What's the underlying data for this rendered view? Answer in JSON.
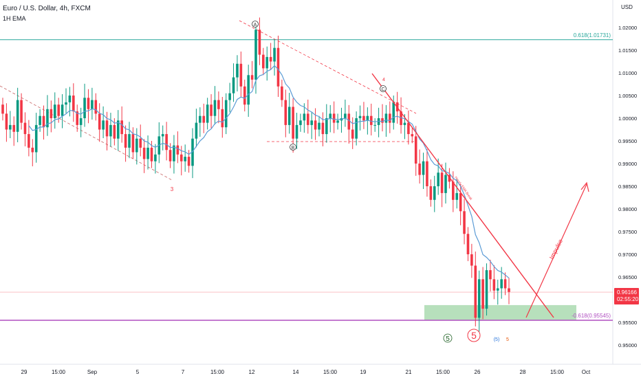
{
  "header": {
    "symbol_title": "Euro / U.S. Dollar, 4h, FXCM",
    "indicator": "1H EMA"
  },
  "price_axis": {
    "currency": "USD",
    "ticks": [
      "1.02000",
      "1.01500",
      "1.01000",
      "1.00500",
      "1.00000",
      "0.99500",
      "0.99000",
      "0.98500",
      "0.98000",
      "0.97500",
      "0.97000",
      "0.96500",
      "0.96000",
      "0.95500",
      "0.95000"
    ],
    "current_price": "0.96166",
    "countdown": "02:55:20"
  },
  "time_axis": {
    "ticks": [
      "29",
      "15:00",
      "Sep",
      "5",
      "7",
      "15:00",
      "12",
      "14",
      "15:00",
      "19",
      "21",
      "15:00",
      "26",
      "28",
      "15:00",
      "Oct"
    ]
  },
  "colors": {
    "bull": "#089981",
    "bear": "#f23645",
    "ema": "#5b9bd5",
    "fib_top": "#26a69a",
    "fib_bottom": "#b04fc1",
    "accent_red": "#f23645",
    "zone": "#9fd6a6",
    "price_label_bg": "#f23645"
  },
  "levels": {
    "fib_top_label": "0.618(1.01731)",
    "fib_bottom_label": "-0.618(0.95545)"
  },
  "annotations": {
    "wave_a": "A",
    "wave_b": "B",
    "wave_c": "C",
    "label_3": "3",
    "label_4": "4",
    "label_5_green": "5",
    "label_5_big": "5",
    "label_5_paren": "(5)",
    "label_5_small": "5",
    "impulse": "Impulse",
    "trendline_note": "Hourly EMA Break"
  },
  "chart_data": {
    "type": "candlestick",
    "title": "Euro / U.S. Dollar, 4h, FXCM",
    "indicator": "1H EMA",
    "y_unit": "USD",
    "ylim": [
      0.9455,
      1.023
    ],
    "x_range": [
      "Aug 28",
      "Oct 1"
    ],
    "x_ticks": [
      "29",
      "15:00",
      "Sep",
      "5",
      "7",
      "15:00",
      "12",
      "14",
      "15:00",
      "19",
      "21",
      "15:00",
      "26",
      "28",
      "15:00",
      "Oct"
    ],
    "y_ticks": [
      1.02,
      1.015,
      1.01,
      1.005,
      1.0,
      0.995,
      0.99,
      0.985,
      0.98,
      0.975,
      0.97,
      0.965,
      0.96,
      0.955,
      0.95
    ],
    "last_price": 0.96166,
    "candles_close": [
      1.001,
      0.9975,
      0.9985,
      0.997,
      1.004,
      0.999,
      0.9965,
      0.9935,
      0.9925,
      0.9985,
      1.0005,
      0.998,
      1.002,
      1.0,
      1.003,
      1.0005,
      1.003,
      1.0035,
      1.005,
      1.0015,
      0.9985,
      1.0,
      1.0045,
      1.002,
      1.004,
      1.001,
      0.9975,
      0.9995,
      0.996,
      0.9985,
      0.9955,
      0.9995,
      0.9965,
      0.9935,
      0.9965,
      0.9925,
      0.9955,
      0.9935,
      0.991,
      0.9935,
      0.9905,
      0.992,
      0.996,
      0.9965,
      0.993,
      0.9905,
      0.994,
      0.992,
      0.9905,
      0.9915,
      0.9895,
      0.9955,
      0.999,
      1.0005,
      0.999,
      1.003,
      1.0005,
      1.004,
      1.002,
      0.998,
      1.004,
      1.0055,
      1.009,
      1.012,
      1.007,
      1.003,
      1.0095,
      1.0085,
      1.0195,
      1.014,
      1.011,
      1.0135,
      1.0125,
      1.0155,
      1.007,
      1.004,
      0.9985,
      1.0025,
      0.9955,
      0.9985,
      0.9995,
      1.001,
      0.9985,
      0.9995,
      0.9975,
      0.999,
      0.9965,
      1.0,
      1.001,
      0.999,
      0.9995,
      1.0,
      1.001,
      0.9975,
      0.9955,
      1.0,
      1.0005,
      0.9995,
      1.0005,
      0.9985,
      0.9985,
      1.0,
      0.999,
      1.001,
      0.999,
      1.0035,
      1.0015,
      0.9985,
      0.999,
      0.9965,
      0.996,
      0.99,
      0.9875,
      0.9905,
      0.985,
      0.982,
      0.985,
      0.988,
      0.9835,
      0.9875,
      0.986,
      0.982,
      0.9835,
      0.9795,
      0.9745,
      0.97,
      0.9675,
      0.956,
      0.9645,
      0.958,
      0.9665,
      0.9645,
      0.962,
      0.9625,
      0.9645,
      0.9625,
      0.9617
    ],
    "series": [
      {
        "name": "1H EMA",
        "values": "smoothed close"
      }
    ],
    "horizontal_levels": [
      {
        "label": "0.618(1.01731)",
        "y": 1.01731
      },
      {
        "label": "-0.618(0.95545)",
        "y": 0.95545
      }
    ],
    "zone": {
      "y_top": 0.9588,
      "y_bottom": 0.9555
    },
    "grid": false,
    "legend": "none"
  }
}
